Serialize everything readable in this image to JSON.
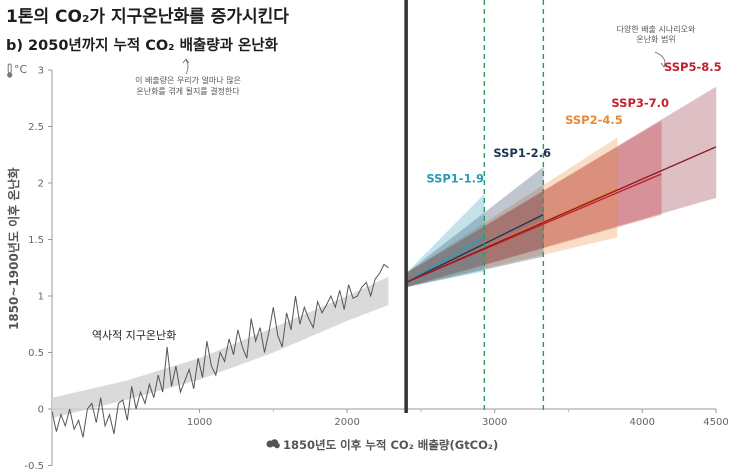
{
  "title": "1톤의 CO₂가 지구온난화를 증가시킨다",
  "subtitle": "b) 2050년까지 누적 CO₂ 배출량과 온난화",
  "chart_data": {
    "type": "line",
    "xlabel": "1850년도 이후 누적 CO₂ 배출량(GtCO₂)",
    "ylabel": "1850~1900년도 이후 온난화",
    "y_unit": "°C",
    "xlim": [
      0,
      4500
    ],
    "ylim": [
      -0.5,
      3
    ],
    "x_ticks": [
      1000,
      2000,
      3000,
      4000,
      4500
    ],
    "y_ticks": [
      -0.5,
      0,
      0.5,
      1,
      1.5,
      2,
      2.5,
      3
    ],
    "x_tick_labels": [
      "1000",
      "2000",
      "3000",
      "4000",
      "4500"
    ],
    "y_tick_labels": [
      "-0.5",
      "0",
      "0.5",
      "1",
      "1.5",
      "2",
      "2.5",
      "3"
    ],
    "present_marker_x": 2400,
    "ssp_marker_lines_x": [
      2930,
      3330
    ],
    "annotations": [
      {
        "lines": [
          "이 배출량은 우리가 얼마나 많은",
          "온난화를 겪게 될지를 결정한다"
        ]
      },
      {
        "lines": [
          "다양한 배출 시나리오와",
          "온난화 범위"
        ]
      }
    ],
    "historical": {
      "name": "역사적 지구온난화",
      "color": "#555555",
      "x": [
        0,
        30,
        60,
        90,
        120,
        150,
        180,
        210,
        240,
        270,
        300,
        330,
        360,
        390,
        420,
        450,
        480,
        510,
        540,
        570,
        600,
        630,
        660,
        690,
        720,
        750,
        780,
        810,
        840,
        870,
        900,
        930,
        960,
        990,
        1020,
        1050,
        1080,
        1110,
        1140,
        1170,
        1200,
        1230,
        1260,
        1290,
        1320,
        1350,
        1380,
        1410,
        1440,
        1470,
        1500,
        1530,
        1560,
        1590,
        1620,
        1650,
        1680,
        1710,
        1740,
        1770,
        1800,
        1830,
        1860,
        1890,
        1920,
        1950,
        1980,
        2010,
        2040,
        2070,
        2100,
        2130,
        2160,
        2190,
        2220,
        2250,
        2280
      ],
      "y": [
        -0.02,
        -0.2,
        -0.05,
        -0.15,
        0.0,
        -0.18,
        -0.1,
        -0.25,
        0.0,
        0.05,
        -0.12,
        0.1,
        -0.15,
        -0.05,
        -0.22,
        0.05,
        0.08,
        -0.1,
        0.2,
        0.0,
        0.15,
        0.05,
        0.22,
        0.1,
        0.3,
        0.15,
        0.55,
        0.2,
        0.38,
        0.15,
        0.25,
        0.35,
        0.18,
        0.45,
        0.28,
        0.6,
        0.38,
        0.3,
        0.5,
        0.42,
        0.62,
        0.48,
        0.7,
        0.55,
        0.45,
        0.8,
        0.6,
        0.72,
        0.5,
        0.68,
        0.9,
        0.65,
        0.55,
        0.85,
        0.7,
        1.0,
        0.75,
        0.9,
        0.8,
        0.72,
        0.95,
        0.85,
        0.92,
        1.0,
        0.9,
        1.05,
        0.88,
        1.1,
        0.98,
        1.0,
        1.08,
        1.12,
        1.0,
        1.15,
        1.2,
        1.28,
        1.25
      ]
    },
    "historical_band": {
      "x": [
        0,
        500,
        1000,
        1500,
        2000,
        2280
      ],
      "low": [
        -0.08,
        0.08,
        0.26,
        0.5,
        0.78,
        0.92
      ],
      "high": [
        0.1,
        0.25,
        0.45,
        0.72,
        1.0,
        1.17
      ]
    },
    "series": [
      {
        "name": "SSP1-1.9",
        "color": "#2a9bb5",
        "label_color": "#2a9bb5",
        "x": [
          2400,
          2930
        ],
        "y": [
          1.12,
          1.52
        ],
        "low": [
          1.08,
          1.22
        ],
        "high": [
          1.2,
          1.9
        ]
      },
      {
        "name": "SSP1-2.6",
        "color": "#1e3557",
        "label_color": "#1e3557",
        "x": [
          2400,
          3330
        ],
        "y": [
          1.12,
          1.72
        ],
        "low": [
          1.08,
          1.35
        ],
        "high": [
          1.2,
          2.14
        ]
      },
      {
        "name": "SSP2-4.5",
        "color": "#e8893a",
        "label_color": "#e8893a",
        "x": [
          2400,
          3830
        ],
        "y": [
          1.12,
          1.95
        ],
        "low": [
          1.08,
          1.52
        ],
        "high": [
          1.2,
          2.4
        ]
      },
      {
        "name": "SSP3-7.0",
        "color": "#c4212b",
        "label_color": "#c4212b",
        "x": [
          2400,
          4130
        ],
        "y": [
          1.12,
          2.08
        ],
        "low": [
          1.08,
          1.72
        ],
        "high": [
          1.2,
          2.55
        ]
      },
      {
        "name": "SSP5-8.5",
        "color": "#8c1c2a",
        "label_color": "#c4212b",
        "x": [
          2400,
          4500
        ],
        "y": [
          1.12,
          2.32
        ],
        "low": [
          1.08,
          1.87
        ],
        "high": [
          1.2,
          2.85
        ]
      }
    ]
  }
}
